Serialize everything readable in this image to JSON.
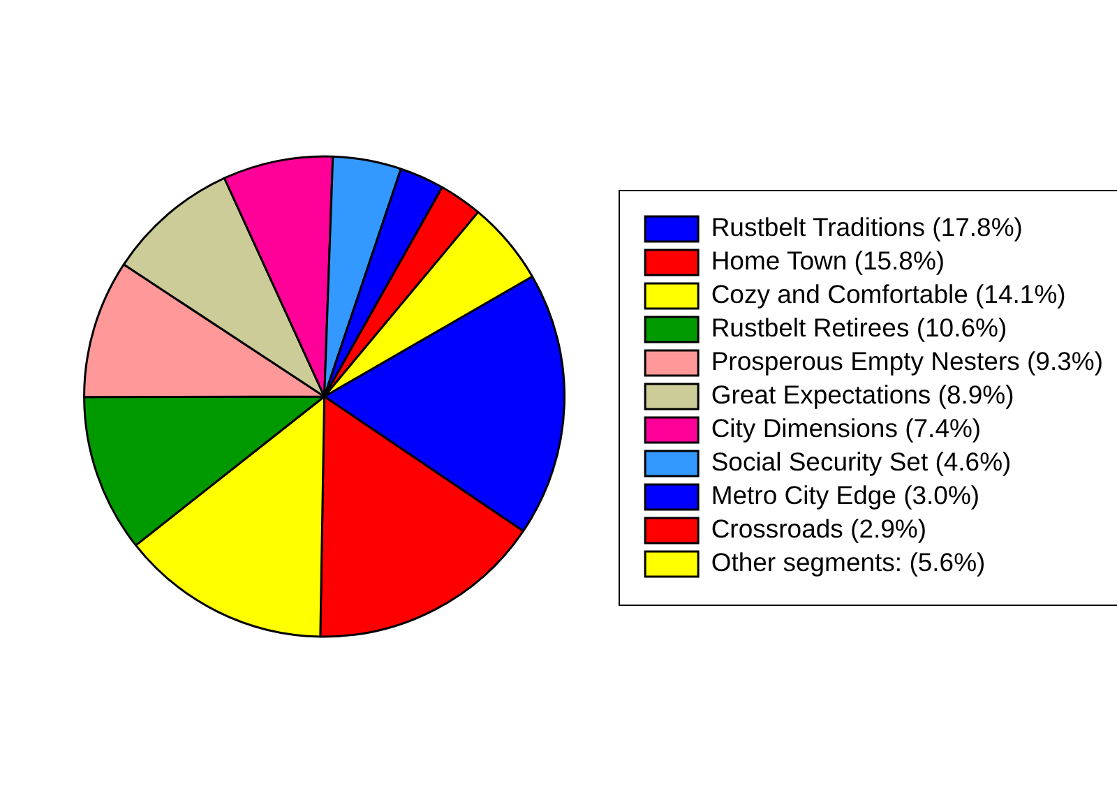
{
  "chart_data": {
    "type": "pie",
    "categories": [
      "Rustbelt Traditions (17.8%)",
      "Home Town (15.8%)",
      "Cozy and Comfortable (14.1%)",
      "Rustbelt Retirees (10.6%)",
      "Prosperous Empty Nesters (9.3%)",
      "Great Expectations (8.9%)",
      "City Dimensions (7.4%)",
      "Social Security Set (4.6%)",
      "Metro City Edge (3.0%)",
      "Crossroads (2.9%)",
      "Other segments: (5.6%)"
    ],
    "values": [
      17.8,
      15.8,
      14.1,
      10.6,
      9.3,
      8.9,
      7.4,
      4.6,
      3.0,
      2.9,
      5.6
    ],
    "colors": [
      "#0000ff",
      "#ff0000",
      "#ffff00",
      "#009900",
      "#ff9999",
      "#cccc99",
      "#ff0099",
      "#3399ff",
      "#0000ff",
      "#ff0000",
      "#ffff00"
    ],
    "legend": "right"
  }
}
